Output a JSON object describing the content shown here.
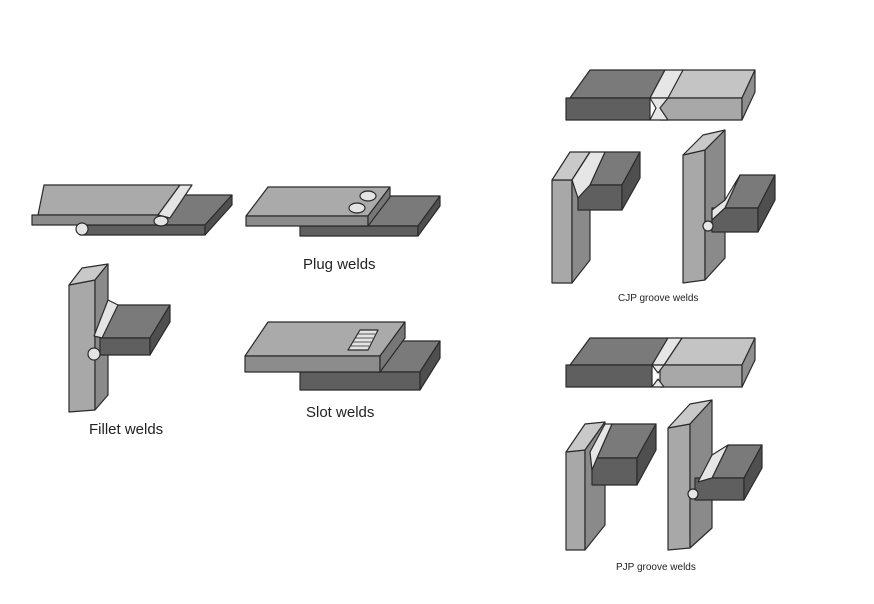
{
  "labels": {
    "fillet": "Fillet welds",
    "plug": "Plug welds",
    "slot": "Slot welds",
    "cjp": "CJP groove welds",
    "pjp": "PJP groove welds"
  },
  "colors": {
    "dark_plate": "#6f6f6f",
    "mid_plate": "#9a9a9a",
    "light_plate": "#c8c8c8",
    "weld": "#e6e6e6",
    "outline": "#2b2b2b"
  }
}
